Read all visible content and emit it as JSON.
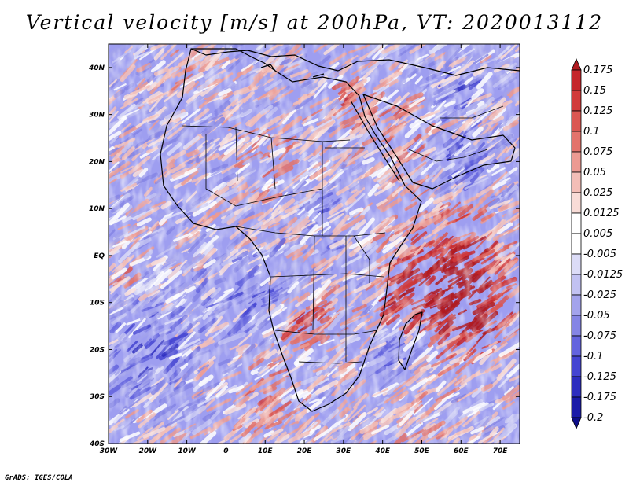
{
  "title": "Vertical velocity [m/s] at 200hPa, VT: 2020013112",
  "credit": "GrADS: IGES/COLA",
  "map": {
    "lon_range": [
      -30,
      75
    ],
    "lat_range": [
      -40,
      45
    ],
    "lon_ticks": [
      {
        "value": -30,
        "label": "30W"
      },
      {
        "value": -20,
        "label": "20W"
      },
      {
        "value": -10,
        "label": "10W"
      },
      {
        "value": 0,
        "label": "0"
      },
      {
        "value": 10,
        "label": "10E"
      },
      {
        "value": 20,
        "label": "20E"
      },
      {
        "value": 30,
        "label": "30E"
      },
      {
        "value": 40,
        "label": "40E"
      },
      {
        "value": 50,
        "label": "50E"
      },
      {
        "value": 60,
        "label": "60E"
      },
      {
        "value": 70,
        "label": "70E"
      }
    ],
    "lat_ticks": [
      {
        "value": 40,
        "label": "40N"
      },
      {
        "value": 30,
        "label": "30N"
      },
      {
        "value": 20,
        "label": "20N"
      },
      {
        "value": 10,
        "label": "10N"
      },
      {
        "value": 0,
        "label": "EQ"
      },
      {
        "value": -10,
        "label": "10S"
      },
      {
        "value": -20,
        "label": "20S"
      },
      {
        "value": -30,
        "label": "30S"
      },
      {
        "value": -40,
        "label": "40S"
      }
    ],
    "hotspots": [
      {
        "lon": 58,
        "lat": -3,
        "r": 12,
        "val": 0.18
      },
      {
        "lon": 62,
        "lat": -12,
        "r": 9,
        "val": 0.18
      },
      {
        "lon": 45,
        "lat": -9,
        "r": 7,
        "val": 0.15
      },
      {
        "lon": 21,
        "lat": -15,
        "r": 6,
        "val": 0.17
      },
      {
        "lon": 33,
        "lat": 33,
        "r": 5,
        "val": 0.12
      },
      {
        "lon": 45,
        "lat": 24,
        "r": 8,
        "val": 0.08
      },
      {
        "lon": 12,
        "lat": 20,
        "r": 9,
        "val": 0.06
      },
      {
        "lon": -28,
        "lat": -3,
        "r": 4,
        "val": 0.08
      },
      {
        "lon": -10,
        "lat": 40,
        "r": 5,
        "val": 0.06
      },
      {
        "lon": 10,
        "lat": -30,
        "r": 8,
        "val": 0.06
      },
      {
        "lon": 47,
        "lat": -32,
        "r": 8,
        "val": 0.07
      },
      {
        "lon": 60,
        "lat": 20,
        "r": 6,
        "val": -0.08
      },
      {
        "lon": -20,
        "lat": -20,
        "r": 10,
        "val": -0.09
      },
      {
        "lon": 5,
        "lat": -8,
        "r": 8,
        "val": -0.08
      },
      {
        "lon": 45,
        "lat": -22,
        "r": 8,
        "val": -0.07
      },
      {
        "lon": 25,
        "lat": 10,
        "r": 7,
        "val": -0.05
      },
      {
        "lon": 60,
        "lat": 35,
        "r": 6,
        "val": -0.08
      }
    ]
  },
  "colorbar": {
    "levels": [
      "0.175",
      "0.15",
      "0.125",
      "0.1",
      "0.075",
      "0.05",
      "0.025",
      "0.0125",
      "0.005",
      "-0.005",
      "-0.0125",
      "-0.025",
      "-0.05",
      "-0.075",
      "-0.1",
      "-0.125",
      "-0.175",
      "-0.2"
    ],
    "colors": [
      "#b01a20",
      "#c5262b",
      "#d13a3a",
      "#db5752",
      "#e3736c",
      "#ec9a92",
      "#f3beb7",
      "#f8dcd7",
      "#ffffff",
      "#ffffff",
      "#dcdcf7",
      "#c2c2f2",
      "#a3a3ec",
      "#8585e5",
      "#6464de",
      "#4545d2",
      "#2d2dbf",
      "#1a1aa8",
      "#0d0d8a"
    ],
    "max_color": "#b01a20",
    "min_color": "#0d0d8a"
  }
}
